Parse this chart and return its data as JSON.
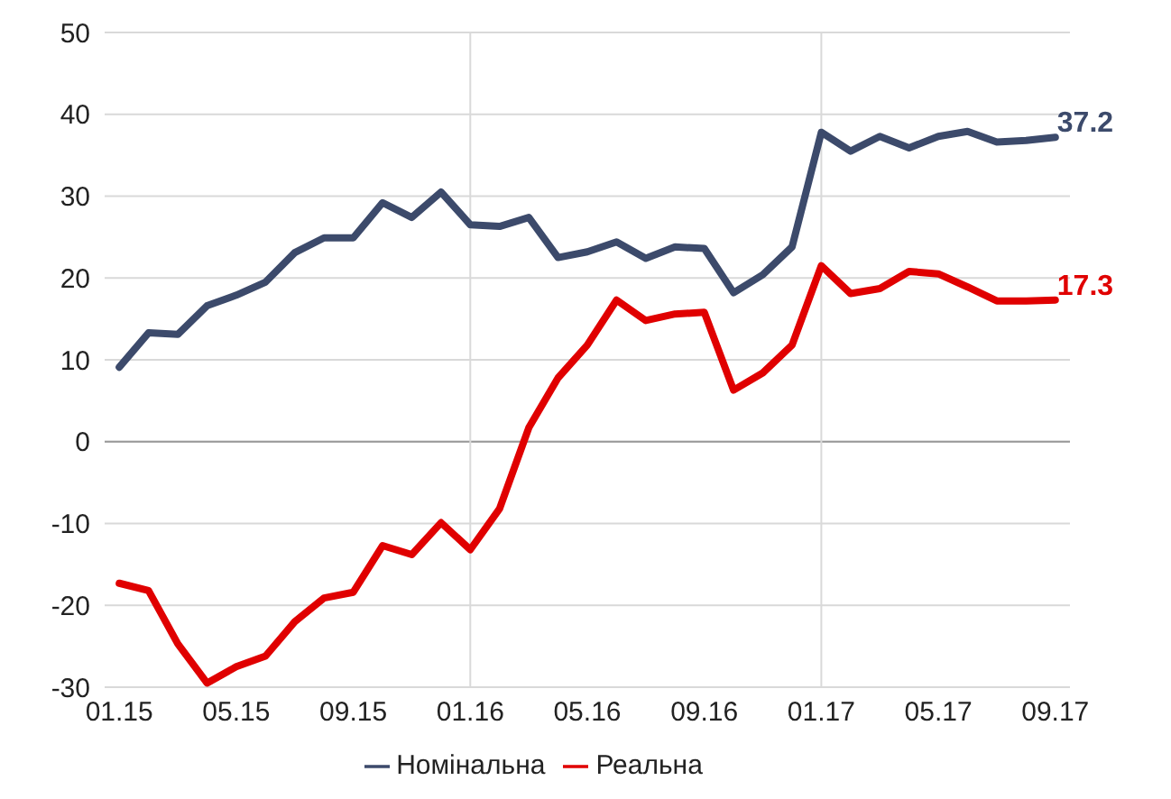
{
  "chart_data": {
    "type": "line",
    "categories": [
      "01.15",
      null,
      null,
      null,
      "05.15",
      null,
      null,
      null,
      "09.15",
      null,
      null,
      null,
      "01.16",
      null,
      null,
      null,
      "05.16",
      null,
      null,
      null,
      "09.16",
      null,
      null,
      null,
      "01.17",
      null,
      null,
      null,
      "05.17",
      null,
      null,
      null,
      "09.17"
    ],
    "series": [
      {
        "name": "Номінальна",
        "color": "#3c4a6b",
        "values": [
          9.1,
          13.3,
          13.1,
          16.6,
          17.9,
          19.5,
          23.1,
          24.9,
          24.9,
          29.2,
          27.4,
          30.5,
          26.5,
          26.3,
          27.4,
          22.5,
          23.2,
          24.4,
          22.4,
          23.8,
          23.6,
          18.2,
          20.4,
          23.8,
          37.8,
          35.5,
          37.3,
          35.9,
          37.3,
          37.9,
          36.6,
          36.8,
          37.2
        ],
        "value_labels": [
          null,
          null,
          null,
          null,
          null,
          null,
          null,
          null,
          null,
          null,
          null,
          null,
          null,
          null,
          null,
          null,
          null,
          null,
          null,
          null,
          null,
          null,
          null,
          null,
          null,
          null,
          null,
          null,
          null,
          null,
          null,
          null,
          "37.2"
        ]
      },
      {
        "name": "Реальна",
        "color": "#e00000",
        "values": [
          -17.3,
          -18.2,
          -24.7,
          -29.5,
          -27.5,
          -26.2,
          -22.0,
          -19.1,
          -18.4,
          -12.7,
          -13.8,
          -9.9,
          -13.2,
          -8.2,
          1.7,
          7.8,
          11.8,
          17.3,
          14.8,
          15.6,
          15.8,
          6.3,
          8.4,
          11.8,
          21.5,
          18.1,
          18.7,
          20.8,
          20.5,
          18.9,
          17.2,
          17.2,
          17.3
        ],
        "value_labels": [
          null,
          null,
          null,
          null,
          null,
          null,
          null,
          null,
          null,
          null,
          null,
          null,
          null,
          null,
          null,
          null,
          null,
          null,
          null,
          null,
          null,
          null,
          null,
          null,
          null,
          null,
          null,
          null,
          null,
          null,
          null,
          null,
          "17.3"
        ]
      }
    ],
    "ylim": [
      -30,
      50
    ],
    "yticks": [
      -30,
      -20,
      -10,
      0,
      10,
      20,
      30,
      40,
      50
    ],
    "grid": "y",
    "legend": "bottom",
    "marker": "none",
    "line_style": "solid",
    "ref_lines": [
      {
        "axis": "x",
        "value": "01.16",
        "color": "#d9d9d9"
      },
      {
        "axis": "x",
        "value": "01.17",
        "color": "#d9d9d9"
      }
    ]
  }
}
